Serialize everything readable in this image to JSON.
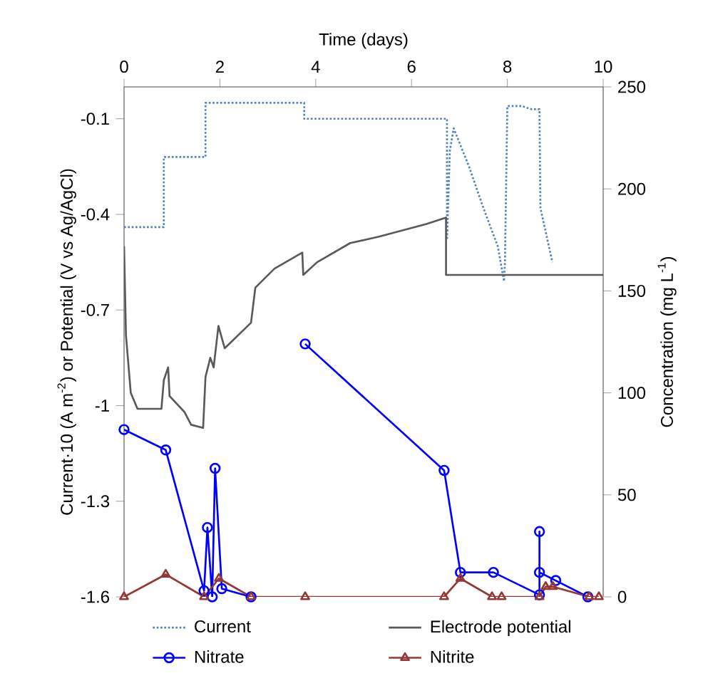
{
  "chart_data": {
    "type": "line",
    "xlabel": "Time (days)",
    "ylabel": "Current·10 (A m$^{-2}$) or Potential (V vs Ag/AgCl)",
    "y2label": "Concentration (mg L$^{-1}$)",
    "xlim": [
      0,
      10
    ],
    "xticks": [
      0,
      2,
      4,
      6,
      8,
      10
    ],
    "ylim": [
      -1.6,
      0
    ],
    "yticks": [
      -1.6,
      -1.3,
      -1,
      -0.7,
      -0.4,
      -0.1
    ],
    "y2lim": [
      0,
      250
    ],
    "y2ticks": [
      0,
      50,
      100,
      150,
      200,
      250
    ],
    "legend": "bottom",
    "grid": false,
    "series": [
      {
        "name": "Current",
        "color": "#4f81bd",
        "line_style": "dotted",
        "marker": "none",
        "x": [
          0,
          0.83,
          0.83,
          1.7,
          1.7,
          3.76,
          3.76,
          6.74,
          6.74,
          6.8,
          6.88,
          7.2,
          7.5,
          7.8,
          7.93,
          7.95,
          8.0,
          8.3,
          8.5,
          8.67,
          8.69,
          8.94
        ],
        "values": [
          -0.44,
          -0.44,
          -0.22,
          -0.22,
          -0.05,
          -0.05,
          -0.1,
          -0.1,
          -0.48,
          -0.2,
          -0.13,
          -0.25,
          -0.38,
          -0.5,
          -0.61,
          -0.55,
          -0.06,
          -0.06,
          -0.07,
          -0.07,
          -0.38,
          -0.55
        ]
      },
      {
        "name": "Electrode potential",
        "color": "#595959",
        "line_style": "solid",
        "marker": "none",
        "x": [
          0,
          0.04,
          0.14,
          0.28,
          0.78,
          0.83,
          0.92,
          0.95,
          1.26,
          1.4,
          1.65,
          1.7,
          1.8,
          1.87,
          1.97,
          2.1,
          2.65,
          2.74,
          3.14,
          3.72,
          3.74,
          4.03,
          4.72,
          5.32,
          6.31,
          6.72,
          6.72,
          10
        ],
        "values": [
          -0.5,
          -0.78,
          -0.96,
          -1.01,
          -1.01,
          -0.92,
          -0.88,
          -0.97,
          -1.02,
          -1.06,
          -1.07,
          -0.91,
          -0.85,
          -0.88,
          -0.75,
          -0.82,
          -0.74,
          -0.63,
          -0.57,
          -0.52,
          -0.59,
          -0.55,
          -0.49,
          -0.47,
          -0.43,
          -0.41,
          -0.59,
          -0.59
        ]
      },
      {
        "name": "Nitrate",
        "color": "#0000ff",
        "line_style": "solid",
        "marker": "circle",
        "axis": "y2",
        "x": [
          0,
          0.87,
          1.67,
          1.74,
          1.84,
          1.9,
          2.04,
          2.65,
          3.2,
          3.78,
          6.68,
          7.02,
          7.71,
          8.67,
          8.67,
          8.67,
          9.01,
          9.68
        ],
        "values": [
          82,
          72,
          3,
          34,
          0,
          63,
          4,
          0,
          null,
          124,
          62,
          12,
          12,
          1,
          32,
          12,
          8,
          0
        ]
      },
      {
        "name": "Nitrite",
        "color": "#953735",
        "line_style": "solid",
        "marker": "triangle",
        "axis": "y2",
        "x": [
          0,
          0.87,
          1.67,
          1.98,
          2.65,
          3.78,
          6.68,
          7.02,
          7.68,
          7.88,
          8.67,
          8.8,
          8.95,
          9.71,
          9.91
        ],
        "values": [
          0,
          11,
          0,
          9,
          0,
          0,
          0,
          9,
          0,
          0,
          0,
          5,
          5,
          0,
          0
        ]
      }
    ]
  }
}
